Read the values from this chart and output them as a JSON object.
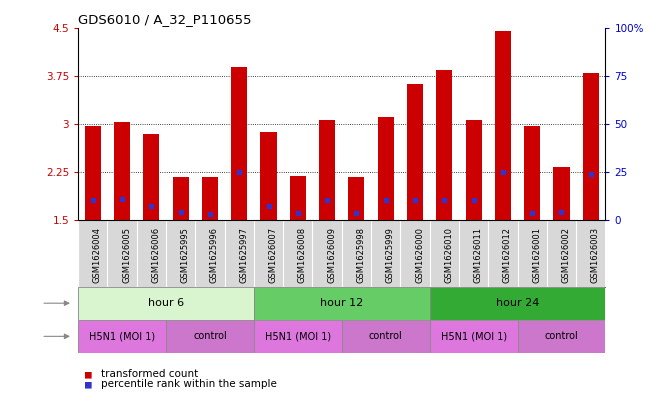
{
  "title": "GDS6010 / A_32_P110655",
  "samples": [
    "GSM1626004",
    "GSM1626005",
    "GSM1626006",
    "GSM1625995",
    "GSM1625996",
    "GSM1625997",
    "GSM1626007",
    "GSM1626008",
    "GSM1626009",
    "GSM1625998",
    "GSM1625999",
    "GSM1626000",
    "GSM1626010",
    "GSM1626011",
    "GSM1626012",
    "GSM1626001",
    "GSM1626002",
    "GSM1626003"
  ],
  "bar_heights": [
    2.97,
    3.03,
    2.85,
    2.18,
    2.17,
    3.88,
    2.87,
    2.19,
    3.06,
    2.18,
    3.1,
    3.62,
    3.84,
    3.06,
    4.44,
    2.97,
    2.33,
    3.79
  ],
  "blue_marker_pos": [
    1.82,
    1.83,
    1.72,
    1.63,
    1.6,
    2.25,
    1.72,
    1.62,
    1.82,
    1.62,
    1.82,
    1.82,
    1.82,
    1.82,
    2.25,
    1.62,
    1.63,
    2.22
  ],
  "ymin": 1.5,
  "ymax": 4.5,
  "yticks_left": [
    1.5,
    2.25,
    3.0,
    3.75,
    4.5
  ],
  "ytick_labels_left": [
    "1.5",
    "2.25",
    "3",
    "3.75",
    "4.5"
  ],
  "yticks_right_vals": [
    0,
    25,
    50,
    75,
    100
  ],
  "ytick_labels_right": [
    "0",
    "25",
    "50",
    "75",
    "100%"
  ],
  "bar_color": "#cc0000",
  "blue_color": "#3333cc",
  "time_groups": [
    {
      "label": "hour 6",
      "start": 0,
      "end": 5,
      "color": "#d8f5d0"
    },
    {
      "label": "hour 12",
      "start": 6,
      "end": 11,
      "color": "#66cc66"
    },
    {
      "label": "hour 24",
      "start": 12,
      "end": 17,
      "color": "#33aa33"
    }
  ],
  "infection_h5n1_color": "#dd66dd",
  "infection_ctrl_color": "#dd66dd",
  "infection_groups": [
    {
      "label": "H5N1 (MOI 1)",
      "start": 0,
      "end": 2,
      "h5n1": true
    },
    {
      "label": "control",
      "start": 3,
      "end": 5,
      "h5n1": false
    },
    {
      "label": "H5N1 (MOI 1)",
      "start": 6,
      "end": 8,
      "h5n1": true
    },
    {
      "label": "control",
      "start": 9,
      "end": 11,
      "h5n1": false
    },
    {
      "label": "H5N1 (MOI 1)",
      "start": 12,
      "end": 14,
      "h5n1": true
    },
    {
      "label": "control",
      "start": 15,
      "end": 17,
      "h5n1": false
    }
  ],
  "label_fontsize": 8,
  "tick_fontsize": 7.5,
  "sample_fontsize": 6,
  "bar_width": 0.55
}
